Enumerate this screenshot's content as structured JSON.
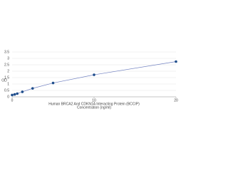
{
  "chart_data": {
    "type": "line",
    "ylabel": "OD",
    "xlabel": [
      "Human BRCA2 And CDKN1A Interacting Protein (BCCIP)",
      "Concentration (ng/ml)"
    ],
    "x": [
      0,
      0.3125,
      0.625,
      1.25,
      2.5,
      5,
      10,
      20
    ],
    "series": [
      {
        "color": "#1f4e8c",
        "line_color": "#7080c0",
        "values": [
          0.14,
          0.19,
          0.25,
          0.39,
          0.66,
          1.08,
          1.72,
          2.75
        ]
      }
    ],
    "xlim": [
      0,
      20
    ],
    "xticks": [
      0,
      10,
      20
    ],
    "ylim": [
      0,
      3.5
    ],
    "yticks": [
      0,
      0.5,
      1,
      1.5,
      2,
      2.5,
      3,
      3.5
    ],
    "grid": true
  }
}
